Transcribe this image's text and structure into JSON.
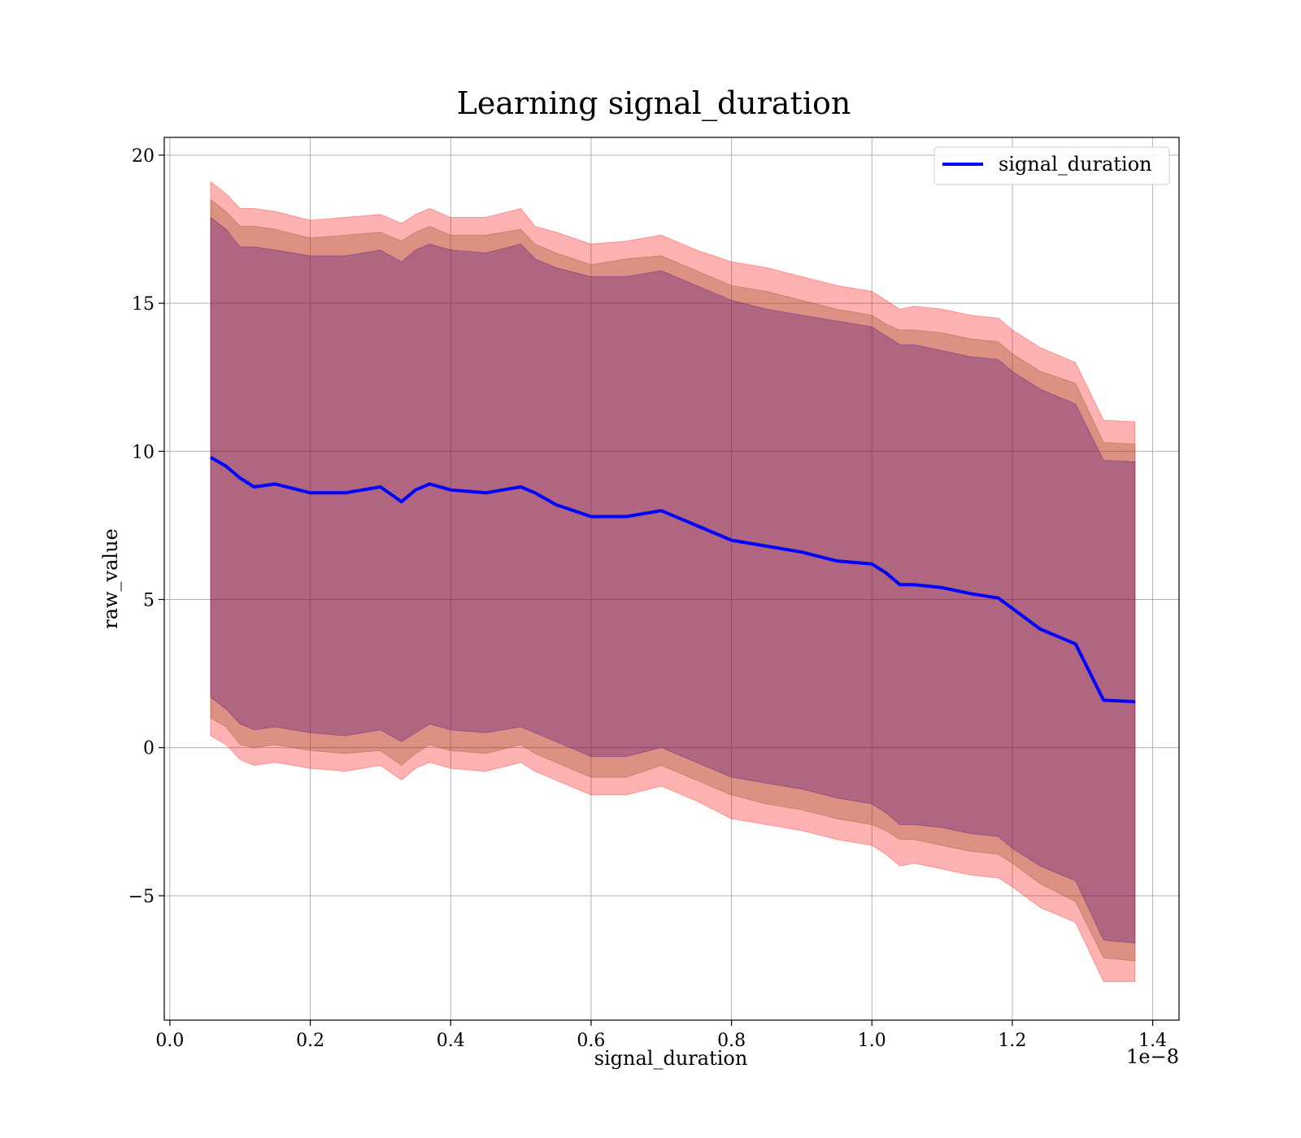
{
  "chart_data": {
    "type": "area",
    "title": "Learning signal_duration",
    "xlabel": "signal_duration",
    "ylabel": "raw_value",
    "x_offset_label": "1e−8",
    "x_scale_factor": 1e-08,
    "xlim": [
      -0.008,
      1.4375
    ],
    "ylim": [
      -9.2,
      20.6
    ],
    "xticks": [
      0.0,
      0.2,
      0.4,
      0.6,
      0.8,
      1.0,
      1.2,
      1.4
    ],
    "xtick_labels": [
      "0.0",
      "0.2",
      "0.4",
      "0.6",
      "0.8",
      "1.0",
      "1.2",
      "1.4"
    ],
    "yticks": [
      -5,
      0,
      5,
      10,
      15,
      20
    ],
    "ytick_labels": [
      "−5",
      "0",
      "5",
      "10",
      "15",
      "20"
    ],
    "grid": true,
    "legend": {
      "placement": "top-right",
      "entries": [
        "signal_duration"
      ]
    },
    "colors": {
      "mean_line": "#0000ff",
      "band_outer": "#ff0000",
      "band_middle": "#8b4513",
      "band_inner": "#4b0082"
    },
    "x": [
      0.058,
      0.08,
      0.1,
      0.12,
      0.15,
      0.2,
      0.25,
      0.3,
      0.33,
      0.35,
      0.37,
      0.4,
      0.45,
      0.5,
      0.52,
      0.55,
      0.6,
      0.65,
      0.7,
      0.75,
      0.8,
      0.85,
      0.9,
      0.95,
      1.0,
      1.02,
      1.04,
      1.06,
      1.1,
      1.14,
      1.18,
      1.2,
      1.24,
      1.29,
      1.33,
      1.375
    ],
    "series": [
      {
        "name": "signal_duration",
        "values": [
          9.8,
          9.5,
          9.1,
          8.8,
          8.9,
          8.6,
          8.6,
          8.8,
          8.3,
          8.7,
          8.9,
          8.7,
          8.6,
          8.8,
          8.6,
          8.2,
          7.8,
          7.8,
          8.0,
          7.5,
          7.0,
          6.8,
          6.6,
          6.3,
          6.2,
          5.9,
          5.5,
          5.5,
          5.4,
          5.2,
          5.05,
          4.7,
          4.0,
          3.5,
          1.6,
          1.55
        ]
      }
    ],
    "bands": [
      {
        "upper": [
          19.1,
          18.7,
          18.2,
          18.2,
          18.1,
          17.8,
          17.9,
          18.0,
          17.7,
          18.0,
          18.2,
          17.9,
          17.9,
          18.2,
          17.6,
          17.4,
          17.0,
          17.1,
          17.3,
          16.8,
          16.4,
          16.2,
          15.9,
          15.6,
          15.4,
          15.1,
          14.8,
          14.9,
          14.8,
          14.6,
          14.5,
          14.1,
          13.5,
          13.0,
          11.05,
          11.0
        ],
        "lower": [
          0.4,
          0.1,
          -0.4,
          -0.6,
          -0.5,
          -0.7,
          -0.8,
          -0.6,
          -1.1,
          -0.7,
          -0.5,
          -0.7,
          -0.8,
          -0.5,
          -0.8,
          -1.1,
          -1.6,
          -1.6,
          -1.3,
          -1.8,
          -2.4,
          -2.6,
          -2.8,
          -3.1,
          -3.3,
          -3.6,
          -4.0,
          -3.9,
          -4.1,
          -4.3,
          -4.4,
          -4.7,
          -5.4,
          -5.9,
          -7.9,
          -7.9
        ]
      },
      {
        "upper": [
          18.5,
          18.1,
          17.6,
          17.6,
          17.5,
          17.2,
          17.3,
          17.4,
          17.1,
          17.4,
          17.6,
          17.3,
          17.3,
          17.5,
          17.0,
          16.7,
          16.3,
          16.5,
          16.6,
          16.1,
          15.6,
          15.4,
          15.1,
          14.8,
          14.6,
          14.3,
          14.1,
          14.1,
          14.0,
          13.8,
          13.7,
          13.3,
          12.7,
          12.3,
          10.3,
          10.25
        ],
        "lower": [
          1.0,
          0.7,
          0.1,
          0.0,
          0.1,
          -0.1,
          -0.2,
          -0.1,
          -0.6,
          -0.2,
          0.1,
          -0.1,
          -0.2,
          0.1,
          -0.2,
          -0.5,
          -1.0,
          -1.0,
          -0.6,
          -1.1,
          -1.6,
          -1.9,
          -2.1,
          -2.4,
          -2.6,
          -2.8,
          -3.1,
          -3.1,
          -3.3,
          -3.5,
          -3.6,
          -3.9,
          -4.6,
          -5.2,
          -7.1,
          -7.2
        ]
      },
      {
        "upper": [
          17.9,
          17.5,
          16.9,
          16.9,
          16.8,
          16.6,
          16.6,
          16.8,
          16.4,
          16.8,
          17.0,
          16.8,
          16.7,
          17.0,
          16.5,
          16.2,
          15.9,
          15.9,
          16.1,
          15.6,
          15.1,
          14.8,
          14.6,
          14.4,
          14.2,
          13.9,
          13.6,
          13.6,
          13.4,
          13.2,
          13.1,
          12.7,
          12.1,
          11.6,
          9.7,
          9.65
        ],
        "lower": [
          1.7,
          1.3,
          0.8,
          0.6,
          0.7,
          0.5,
          0.4,
          0.6,
          0.2,
          0.5,
          0.8,
          0.6,
          0.5,
          0.7,
          0.5,
          0.2,
          -0.3,
          -0.3,
          0.0,
          -0.5,
          -1.0,
          -1.2,
          -1.4,
          -1.7,
          -1.9,
          -2.2,
          -2.6,
          -2.6,
          -2.7,
          -2.9,
          -3.0,
          -3.4,
          -4.0,
          -4.5,
          -6.5,
          -6.6
        ]
      }
    ]
  }
}
